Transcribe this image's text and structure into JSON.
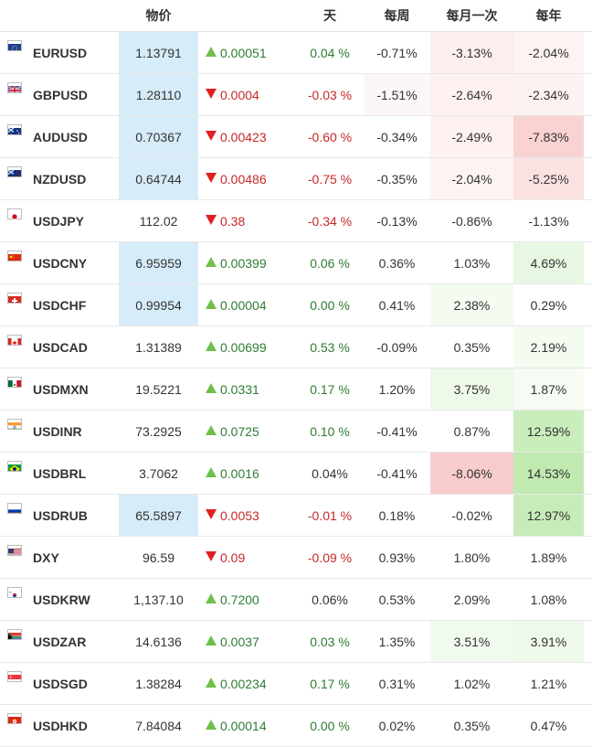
{
  "header": {
    "price": "物价",
    "day": "天",
    "week": "每周",
    "month": "每月一次",
    "year": "每年"
  },
  "rows": [
    {
      "flag": "eu-flag-icon",
      "symbol": "EURUSD",
      "price": "1.13791",
      "price_hl": true,
      "change": "0.00051",
      "dir": "up",
      "day": "0.04 %",
      "day_dir": "up",
      "week": "-0.71%",
      "week_bg": "",
      "month": "-3.13%",
      "month_bg": "#fdeeee",
      "year": "-2.04%",
      "year_bg": "#fdf3f3"
    },
    {
      "flag": "gb-flag-icon",
      "symbol": "GBPUSD",
      "price": "1.28110",
      "price_hl": true,
      "change": "0.0004",
      "dir": "down",
      "day": "-0.03 %",
      "day_dir": "down",
      "week": "-1.51%",
      "week_bg": "#fdf6f6",
      "month": "-2.64%",
      "month_bg": "#fdf1f1",
      "year": "-2.34%",
      "year_bg": "#fdf2f2"
    },
    {
      "flag": "au-flag-icon",
      "symbol": "AUDUSD",
      "price": "0.70367",
      "price_hl": true,
      "change": "0.00423",
      "dir": "down",
      "day": "-0.60 %",
      "day_dir": "down",
      "week": "-0.34%",
      "week_bg": "",
      "month": "-2.49%",
      "month_bg": "#fdf1f1",
      "year": "-7.83%",
      "year_bg": "#f9d2d2"
    },
    {
      "flag": "nz-flag-icon",
      "symbol": "NZDUSD",
      "price": "0.64744",
      "price_hl": true,
      "change": "0.00486",
      "dir": "down",
      "day": "-0.75 %",
      "day_dir": "down",
      "week": "-0.35%",
      "week_bg": "",
      "month": "-2.04%",
      "month_bg": "#fdf3f3",
      "year": "-5.25%",
      "year_bg": "#fbe1e1"
    },
    {
      "flag": "jp-flag-icon",
      "symbol": "USDJPY",
      "price": "112.02",
      "price_hl": false,
      "change": "0.38",
      "dir": "down",
      "day": "-0.34 %",
      "day_dir": "down",
      "week": "-0.13%",
      "week_bg": "",
      "month": "-0.86%",
      "month_bg": "",
      "year": "-1.13%",
      "year_bg": ""
    },
    {
      "flag": "cn-flag-icon",
      "symbol": "USDCNY",
      "price": "6.95959",
      "price_hl": true,
      "change": "0.00399",
      "dir": "up",
      "day": "0.06 %",
      "day_dir": "up",
      "week": "0.36%",
      "week_bg": "",
      "month": "1.03%",
      "month_bg": "",
      "year": "4.69%",
      "year_bg": "#e8f7e2"
    },
    {
      "flag": "ch-flag-icon",
      "symbol": "USDCHF",
      "price": "0.99954",
      "price_hl": true,
      "change": "0.00004",
      "dir": "up",
      "day": "0.00 %",
      "day_dir": "up",
      "week": "0.41%",
      "week_bg": "",
      "month": "2.38%",
      "month_bg": "#f4fbf1",
      "year": "0.29%",
      "year_bg": ""
    },
    {
      "flag": "ca-flag-icon",
      "symbol": "USDCAD",
      "price": "1.31389",
      "price_hl": false,
      "change": "0.00699",
      "dir": "up",
      "day": "0.53 %",
      "day_dir": "up",
      "week": "-0.09%",
      "week_bg": "",
      "month": "0.35%",
      "month_bg": "",
      "year": "2.19%",
      "year_bg": "#f4fbf1"
    },
    {
      "flag": "mx-flag-icon",
      "symbol": "USDMXN",
      "price": "19.5221",
      "price_hl": false,
      "change": "0.0331",
      "dir": "up",
      "day": "0.17 %",
      "day_dir": "up",
      "week": "1.20%",
      "week_bg": "",
      "month": "3.75%",
      "month_bg": "#eef9ea",
      "year": "1.87%",
      "year_bg": "#f6fcf4"
    },
    {
      "flag": "in-flag-icon",
      "symbol": "USDINR",
      "price": "73.2925",
      "price_hl": false,
      "change": "0.0725",
      "dir": "up",
      "day": "0.10 %",
      "day_dir": "up",
      "week": "-0.41%",
      "week_bg": "",
      "month": "0.87%",
      "month_bg": "",
      "year": "12.59%",
      "year_bg": "#c9edbb"
    },
    {
      "flag": "br-flag-icon",
      "symbol": "USDBRL",
      "price": "3.7062",
      "price_hl": false,
      "change": "0.0016",
      "dir": "up",
      "day": "0.04%",
      "day_dir": "flat",
      "week": "-0.41%",
      "week_bg": "",
      "month": "-8.06%",
      "month_bg": "#f8cccc",
      "year": "14.53%",
      "year_bg": "#c1eab1"
    },
    {
      "flag": "ru-flag-icon",
      "symbol": "USDRUB",
      "price": "65.5897",
      "price_hl": true,
      "change": "0.0053",
      "dir": "down",
      "day": "-0.01 %",
      "day_dir": "down",
      "week": "0.18%",
      "week_bg": "",
      "month": "-0.02%",
      "month_bg": "",
      "year": "12.97%",
      "year_bg": "#c7ecb9"
    },
    {
      "flag": "us-flag-icon",
      "symbol": "DXY",
      "price": "96.59",
      "price_hl": false,
      "change": "0.09",
      "dir": "down",
      "day": "-0.09 %",
      "day_dir": "down",
      "week": "0.93%",
      "week_bg": "",
      "month": "1.80%",
      "month_bg": "",
      "year": "1.89%",
      "year_bg": ""
    },
    {
      "flag": "kr-flag-icon",
      "symbol": "USDKRW",
      "price": "1,137.10",
      "price_hl": false,
      "change": "0.7200",
      "dir": "up",
      "day": "0.06%",
      "day_dir": "flat",
      "week": "0.53%",
      "week_bg": "",
      "month": "2.09%",
      "month_bg": "",
      "year": "1.08%",
      "year_bg": ""
    },
    {
      "flag": "za-flag-icon",
      "symbol": "USDZAR",
      "price": "14.6136",
      "price_hl": false,
      "change": "0.0037",
      "dir": "up",
      "day": "0.03 %",
      "day_dir": "up",
      "week": "1.35%",
      "week_bg": "",
      "month": "3.51%",
      "month_bg": "#f1faee",
      "year": "3.91%",
      "year_bg": "#eff9eb"
    },
    {
      "flag": "sg-flag-icon",
      "symbol": "USDSGD",
      "price": "1.38284",
      "price_hl": false,
      "change": "0.00234",
      "dir": "up",
      "day": "0.17 %",
      "day_dir": "up",
      "week": "0.31%",
      "week_bg": "",
      "month": "1.02%",
      "month_bg": "",
      "year": "1.21%",
      "year_bg": ""
    },
    {
      "flag": "hk-flag-icon",
      "symbol": "USDHKD",
      "price": "7.84084",
      "price_hl": false,
      "change": "0.00014",
      "dir": "up",
      "day": "0.00 %",
      "day_dir": "up",
      "week": "0.02%",
      "week_bg": "",
      "month": "0.35%",
      "month_bg": "",
      "year": "0.47%",
      "year_bg": ""
    }
  ]
}
